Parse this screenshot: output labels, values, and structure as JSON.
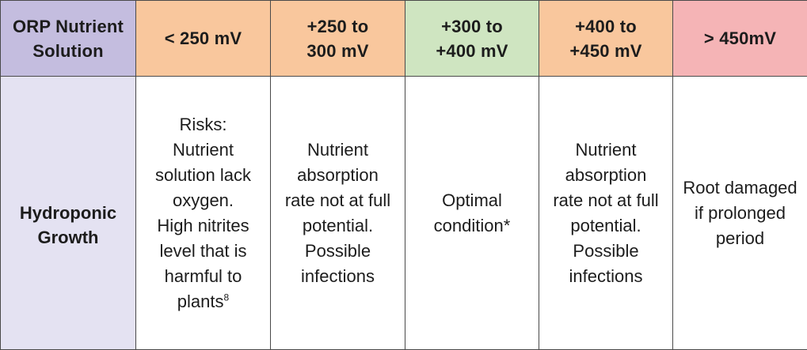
{
  "colors": {
    "label_column_header": "#c4bddf",
    "label_column_body": "#e4e2f2",
    "range_orange": "#f9c79d",
    "range_green": "#cfe5c1",
    "range_pink": "#f5b4b6",
    "border": "#4a4a4a",
    "body_bg": "#ffffff"
  },
  "header": {
    "label": "ORP Nutrient\nSolution",
    "columns": [
      {
        "text": "< 250 mV",
        "color": "orange"
      },
      {
        "text": "+250 to\n300 mV",
        "color": "orange"
      },
      {
        "text": "+300 to\n+400 mV",
        "color": "green"
      },
      {
        "text": "+400 to\n+450 mV",
        "color": "orange"
      },
      {
        "text": "> 450mV",
        "color": "pink"
      }
    ]
  },
  "row": {
    "label": "Hydroponic\nGrowth",
    "cells": [
      {
        "text": "Risks:\nNutrient\nsolution lack\noxygen.\nHigh nitrites\nlevel that is\nharmful to\nplants",
        "sup": "8"
      },
      {
        "text": "Nutrient\nabsorption\nrate not at full\npotential.\nPossible\ninfections"
      },
      {
        "text": "Optimal\ncondition*"
      },
      {
        "text": "Nutrient\nabsorption\nrate not at full\npotential.\nPossible\ninfections"
      },
      {
        "text": "Root damaged\nif prolonged\nperiod"
      }
    ]
  }
}
